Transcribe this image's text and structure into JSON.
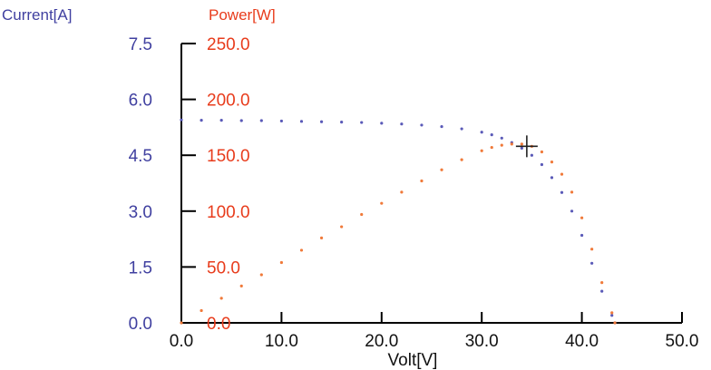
{
  "chart_data": {
    "type": "scatter",
    "title": "",
    "xlabel": "Volt[V]",
    "xlim": [
      0,
      50
    ],
    "xticks": [
      "0.0",
      "10.0",
      "20.0",
      "30.0",
      "40.0",
      "50.0"
    ],
    "y_left": {
      "label": "Current[A]",
      "lim": [
        0,
        7.5
      ],
      "ticks": [
        "0.0",
        "1.5",
        "3.0",
        "4.5",
        "6.0",
        "7.5"
      ],
      "color": "#4040a0"
    },
    "y_right": {
      "label": "Power[W]",
      "lim": [
        0,
        250
      ],
      "ticks": [
        "0.0",
        "50.0",
        "100.0",
        "150.0",
        "200.0",
        "250.0"
      ],
      "color": "#e83c1c"
    },
    "grid": false,
    "series": [
      {
        "axis": "left",
        "color": "#5a5ab8",
        "x": [
          0,
          2,
          4,
          6,
          8,
          10,
          12,
          14,
          16,
          18,
          20,
          22,
          24,
          26,
          28,
          30,
          31,
          32,
          33,
          34,
          35,
          36,
          37,
          38,
          39,
          40,
          41,
          42,
          43,
          43.3
        ],
        "y": [
          5.45,
          5.44,
          5.44,
          5.43,
          5.43,
          5.42,
          5.41,
          5.4,
          5.39,
          5.38,
          5.36,
          5.34,
          5.31,
          5.27,
          5.21,
          5.12,
          5.05,
          4.96,
          4.84,
          4.69,
          4.5,
          4.25,
          3.9,
          3.5,
          3.0,
          2.35,
          1.6,
          0.85,
          0.2,
          0
        ]
      },
      {
        "axis": "right",
        "color": "#f07a3a",
        "x": [
          0,
          2,
          4,
          6,
          8,
          10,
          12,
          14,
          16,
          18,
          20,
          22,
          24,
          26,
          28,
          30,
          31,
          32,
          33,
          34,
          35,
          36,
          37,
          38,
          39,
          40,
          41,
          42,
          43,
          43.3
        ],
        "y": [
          0,
          11,
          22,
          33,
          43,
          54,
          65,
          76,
          86,
          97,
          107,
          117,
          127,
          137,
          146,
          154,
          157,
          159,
          160,
          160,
          158,
          153,
          144,
          133,
          117,
          94,
          66,
          36,
          9,
          0
        ]
      }
    ],
    "marker": {
      "type": "cross",
      "x": 34.5,
      "y_right": 158
    }
  }
}
